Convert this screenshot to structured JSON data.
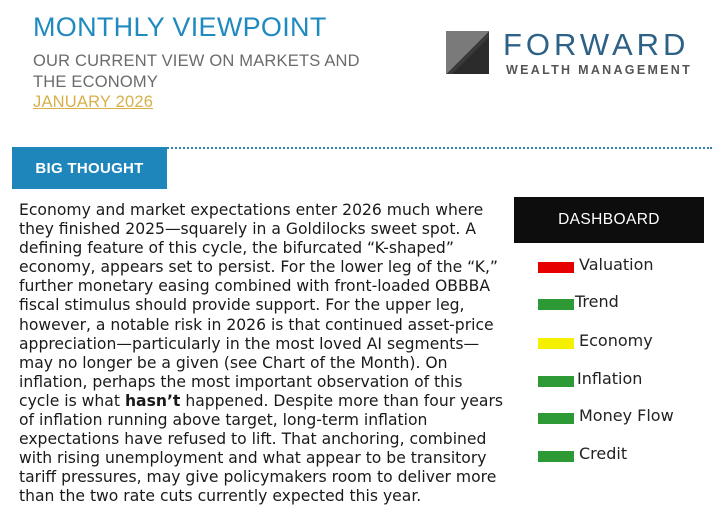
{
  "header": {
    "title": "MONTHLY VIEWPOINT",
    "subtitle": "OUR CURRENT VIEW ON MARKETS AND THE ECONOMY",
    "date": "JANUARY 2026"
  },
  "logo": {
    "name": "FORWARD",
    "tagline": "WEALTH MANAGEMENT",
    "colors": {
      "dark": "#3a3a3a",
      "light": "#7a7a7a"
    }
  },
  "section": {
    "title": "BIG THOUGHT"
  },
  "article": {
    "paragraph_before": "Economy and market expectations enter 2026 much where they finished 2025—squarely in a Goldilocks sweet spot. A defining feature of this cycle, the bifurcated “K-shaped” economy, appears set to persist. For the lower leg of the “K,” further monetary easing combined with front-loaded OBBBA fiscal stimulus should provide support. For the upper leg, however, a notable risk in 2026 is that continued asset-price appreciation—particularly in the most loved AI segments—may no longer be a given (see Chart of the Month). On inflation, perhaps the most important observation of this cycle is what",
    "emphasis": "hasn’t",
    "paragraph_after": "happened. Despite more than four years of inflation running above target, long-term inflation expectations have refused to lift. That anchoring, combined with rising unemployment and what appear to be transitory tariff pressures, may give policymakers room to deliver more than the two rate cuts currently expected this year."
  },
  "dashboard": {
    "title": "DASHBOARD",
    "items": [
      {
        "label": "Valuation",
        "status_color": "#e60000"
      },
      {
        "label": "Trend",
        "status_color": "#2e9a35"
      },
      {
        "label": "Economy",
        "status_color": "#f5f000"
      },
      {
        "label": "Inflation",
        "status_color": "#2e9a35"
      },
      {
        "label": "Money Flow",
        "status_color": "#2e9a35"
      },
      {
        "label": "Credit",
        "status_color": "#2e9a35"
      }
    ]
  }
}
